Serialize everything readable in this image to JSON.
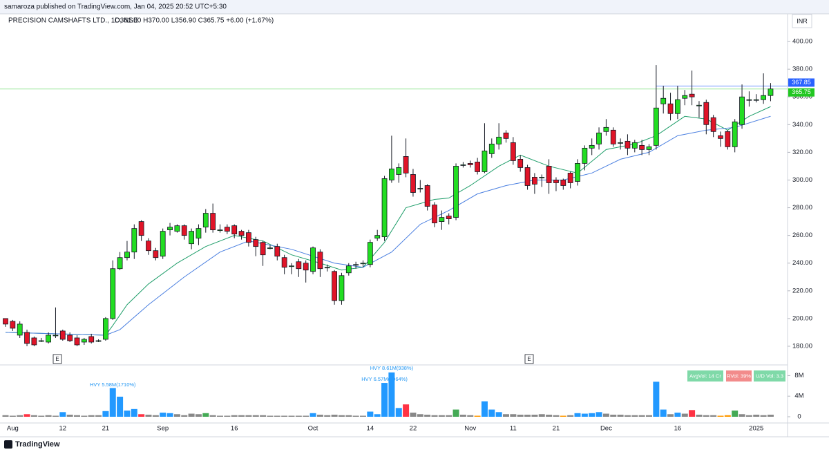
{
  "header": {
    "publisher": "samaroza published on TradingView.com, Jan 04, 2025 20:52 UTC+5:30",
    "symbol": "PRECISION CAMSHAFTS LTD., 1D, NSE",
    "ohlc": "O361.00 H370.00 L356.90 C365.75 +6.00 (+1.67%)",
    "currency": "INR"
  },
  "chart_data": {
    "type": "candlestick",
    "categories": [
      null,
      "Aug",
      null,
      null,
      null,
      null,
      null,
      null,
      "12",
      null,
      null,
      null,
      null,
      null,
      "21",
      null,
      null,
      null,
      null,
      null,
      null,
      null,
      "Sep",
      null,
      null,
      null,
      null,
      null,
      null,
      null,
      null,
      null,
      "16",
      null,
      null,
      null,
      null,
      null,
      null,
      null,
      null,
      null,
      null,
      "Oct",
      null,
      null,
      null,
      null,
      null,
      null,
      null,
      "14",
      null,
      null,
      null,
      null,
      null,
      "22",
      null,
      null,
      null,
      null,
      null,
      null,
      null,
      "Nov",
      null,
      null,
      null,
      null,
      null,
      "11",
      null,
      null,
      null,
      null,
      null,
      "21",
      null,
      null,
      null,
      null,
      null,
      null,
      "Dec",
      null,
      null,
      null,
      null,
      null,
      null,
      null,
      null,
      null,
      "16",
      null,
      null,
      null,
      null,
      null,
      null,
      null,
      null,
      null,
      null,
      "2025",
      null,
      null
    ],
    "open": [
      200,
      198,
      188,
      190,
      186,
      184,
      183,
      188,
      191,
      188,
      186,
      183,
      187,
      184,
      185,
      200,
      236,
      244,
      248,
      270,
      256,
      249,
      245,
      264,
      263,
      267,
      254,
      258,
      266,
      276,
      264,
      266,
      267,
      263,
      262,
      257,
      255,
      251,
      252,
      244,
      238,
      241,
      240,
      234,
      248,
      237,
      234,
      213,
      233,
      239,
      240,
      239,
      258,
      259,
      300,
      304,
      317,
      304,
      294,
      296,
      282,
      270,
      274,
      273,
      311,
      312,
      313,
      306,
      319,
      326,
      334,
      327,
      315,
      309,
      302,
      302,
      310,
      300,
      300,
      305,
      299,
      312,
      323,
      326,
      335,
      336,
      327,
      328,
      323,
      325,
      322,
      325,
      355,
      355,
      348,
      359,
      362,
      354,
      356,
      345,
      332,
      335,
      324,
      340,
      358,
      358,
      358,
      361
    ],
    "high": [
      200,
      199,
      198,
      192,
      187,
      186,
      190,
      208,
      192,
      190,
      188,
      186,
      189,
      185,
      201,
      242,
      248,
      256,
      268,
      271,
      258,
      251,
      265,
      269,
      268,
      268,
      265,
      268,
      279,
      283,
      268,
      268,
      268,
      264,
      264,
      259,
      256,
      253,
      254,
      246,
      240,
      243,
      242,
      252,
      250,
      239,
      235,
      233,
      240,
      241,
      242,
      257,
      264,
      303,
      332,
      312,
      330,
      308,
      300,
      297,
      284,
      278,
      276,
      312,
      313,
      314,
      316,
      341,
      330,
      341,
      336,
      331,
      318,
      311,
      305,
      304,
      315,
      302,
      301,
      306,
      315,
      325,
      330,
      338,
      344,
      338,
      330,
      333,
      329,
      329,
      326,
      383,
      368,
      363,
      368,
      365,
      379,
      357,
      358,
      347,
      335,
      336,
      344,
      369,
      364,
      362,
      377,
      370
    ],
    "low": [
      194,
      191,
      186,
      180,
      180,
      183,
      182,
      186,
      184,
      183,
      180,
      181,
      182,
      183,
      184,
      199,
      235,
      242,
      243,
      256,
      246,
      242,
      243,
      260,
      262,
      257,
      250,
      253,
      262,
      262,
      262,
      261,
      258,
      257,
      252,
      245,
      238,
      250,
      242,
      232,
      232,
      230,
      226,
      232,
      230,
      234,
      210,
      210,
      231,
      236,
      237,
      237,
      256,
      256,
      298,
      298,
      302,
      288,
      291,
      278,
      266,
      264,
      268,
      271,
      309,
      309,
      304,
      305,
      316,
      322,
      327,
      311,
      306,
      293,
      290,
      295,
      290,
      292,
      293,
      294,
      296,
      307,
      318,
      322,
      332,
      324,
      322,
      318,
      320,
      318,
      318,
      322,
      348,
      343,
      344,
      354,
      354,
      345,
      333,
      331,
      324,
      322,
      320,
      337,
      353,
      356,
      355,
      356.9
    ],
    "close": [
      196,
      193,
      196,
      182,
      181,
      184,
      188,
      188,
      185,
      184,
      181,
      185,
      183,
      184,
      200,
      236,
      244,
      248,
      265,
      260,
      249,
      244,
      263,
      266,
      267,
      260,
      263,
      265,
      276,
      264,
      264,
      263,
      261,
      260,
      255,
      252,
      246,
      251,
      245,
      237,
      238,
      236,
      235,
      251,
      236,
      237,
      213,
      231,
      238,
      239,
      240,
      255,
      260,
      301,
      308,
      309,
      305,
      291,
      294,
      281,
      269,
      273,
      272,
      310,
      311,
      311,
      306,
      321,
      326,
      331,
      330,
      314,
      309,
      296,
      297,
      302,
      298,
      298,
      296,
      298,
      312,
      323,
      325,
      334,
      338,
      326,
      327,
      323,
      327,
      322,
      324,
      352,
      359,
      348,
      358,
      361,
      360,
      354,
      340,
      335,
      330,
      324,
      342,
      360,
      358,
      358,
      361,
      365.75
    ],
    "up_color": "#22dd22",
    "down_color": "#e01428",
    "ylim": [
      174,
      412
    ],
    "yticks": [
      {
        "value": 180,
        "label": "180.00"
      },
      {
        "value": 200,
        "label": "200.00"
      },
      {
        "value": 220,
        "label": "220.00"
      },
      {
        "value": 240,
        "label": "240.00"
      },
      {
        "value": 260,
        "label": "260.00"
      },
      {
        "value": 280,
        "label": "280.00"
      },
      {
        "value": 300,
        "label": "300.00"
      },
      {
        "value": 320,
        "label": "320.00"
      },
      {
        "value": 340,
        "label": "340.00"
      },
      {
        "value": 360,
        "label": "360.00"
      },
      {
        "value": 380,
        "label": "380.00"
      },
      {
        "value": 400,
        "label": "400.00"
      }
    ],
    "moving_averages": [
      {
        "color": "#1f9e6a",
        "x": [
          0,
          14,
          15,
          17,
          20,
          24,
          28,
          32,
          36,
          40,
          44,
          47,
          50,
          53,
          56,
          60,
          62,
          65,
          69,
          72,
          76,
          80,
          84,
          88,
          91,
          95,
          98,
          101,
          104,
          107
        ],
        "values": [
          190,
          188,
          195,
          210,
          225,
          240,
          252,
          260,
          256,
          246,
          240,
          235,
          237,
          255,
          280,
          286,
          287,
          296,
          310,
          318,
          310,
          305,
          322,
          326,
          332,
          346,
          344,
          336,
          346,
          353
        ]
      },
      {
        "color": "#4a7fe0",
        "x": [
          0,
          14,
          16,
          20,
          25,
          30,
          34,
          40,
          46,
          50,
          54,
          58,
          62,
          66,
          70,
          74,
          78,
          82,
          86,
          90,
          94,
          98,
          102,
          107
        ],
        "values": [
          190,
          188,
          192,
          210,
          230,
          248,
          256,
          250,
          240,
          237,
          248,
          268,
          278,
          290,
          296,
          300,
          300,
          305,
          315,
          320,
          332,
          336,
          338,
          346
        ]
      }
    ],
    "price_lines": [
      {
        "value": 367.85,
        "label": "367.85",
        "color": "#2962ff"
      },
      {
        "value": 365.75,
        "label": "365.75",
        "color": "#22c722"
      }
    ],
    "earnings_markers": [
      "E",
      "E"
    ],
    "volume": {
      "values": [
        0.3,
        0.2,
        0.3,
        0.5,
        0.3,
        0.2,
        0.3,
        0.2,
        0.9,
        0.4,
        0.3,
        0.2,
        0.3,
        0.3,
        1.1,
        5.58,
        3.9,
        1.2,
        1.5,
        0.5,
        0.4,
        0.3,
        0.8,
        0.7,
        0.5,
        0.3,
        0.6,
        0.5,
        0.7,
        0.3,
        0.2,
        0.2,
        0.3,
        0.3,
        0.3,
        0.3,
        0.3,
        0.2,
        0.2,
        0.2,
        0.2,
        0.2,
        0.2,
        0.7,
        0.4,
        0.3,
        0.4,
        0.3,
        0.3,
        0.2,
        0.2,
        1.0,
        0.5,
        6.57,
        8.61,
        1.7,
        2.4,
        0.8,
        0.5,
        0.4,
        0.3,
        0.3,
        0.3,
        1.4,
        0.4,
        0.3,
        0.2,
        3.0,
        1.4,
        0.9,
        0.5,
        0.5,
        0.4,
        0.4,
        0.4,
        0.5,
        0.4,
        0.3,
        0.2,
        0.3,
        0.7,
        0.6,
        0.7,
        0.9,
        0.6,
        0.4,
        0.4,
        0.3,
        0.3,
        0.3,
        0.3,
        6.8,
        1.4,
        0.5,
        0.8,
        0.6,
        1.3,
        0.4,
        0.3,
        0.3,
        0.2,
        0.3,
        1.2,
        0.5,
        0.3,
        0.4,
        0.3,
        0.4
      ],
      "colors": [
        "#888",
        "#888",
        "#888",
        "#f34",
        "#888",
        "#888",
        "#888",
        "#888",
        "#29f",
        "#888",
        "#888",
        "#888",
        "#888",
        "#888",
        "#29f",
        "#29f",
        "#29f",
        "#29f",
        "#29f",
        "#f34",
        "#888",
        "#888",
        "#29f",
        "#29f",
        "#888",
        "#888",
        "#888",
        "#888",
        "#4a5",
        "#888",
        "#888",
        "#888",
        "#888",
        "#888",
        "#888",
        "#888",
        "#888",
        "#888",
        "#888",
        "#888",
        "#888",
        "#888",
        "#888",
        "#29f",
        "#888",
        "#888",
        "#888",
        "#888",
        "#888",
        "#888",
        "#888",
        "#29f",
        "#29f",
        "#29f",
        "#29f",
        "#29f",
        "#f34",
        "#888",
        "#888",
        "#888",
        "#888",
        "#888",
        "#888",
        "#4a5",
        "#888",
        "#888",
        "#f90",
        "#29f",
        "#29f",
        "#29f",
        "#888",
        "#888",
        "#888",
        "#888",
        "#888",
        "#888",
        "#888",
        "#888",
        "#f90",
        "#888",
        "#29f",
        "#29f",
        "#29f",
        "#29f",
        "#888",
        "#888",
        "#888",
        "#888",
        "#888",
        "#888",
        "#888",
        "#29f",
        "#29f",
        "#888",
        "#29f",
        "#888",
        "#f34",
        "#888",
        "#888",
        "#888",
        "#f90",
        "#f90",
        "#4a5",
        "#888",
        "#888",
        "#888",
        "#888",
        "#888"
      ],
      "ylim": [
        0,
        9.8
      ],
      "yticks": [
        0,
        {
          "value": 4,
          "label": "4M"
        },
        {
          "value": 8,
          "label": "8M"
        }
      ],
      "annotations": [
        "HVY 5.58M(1710%)",
        "HVY 6.57M(1064%)",
        "HVY 8.61M(938%)"
      ],
      "badges": [
        "AvgVol: 14 Cr",
        "RVol: 39%",
        "U/D Vol: 3.3"
      ]
    }
  },
  "footer": {
    "brand": "TradingView"
  }
}
